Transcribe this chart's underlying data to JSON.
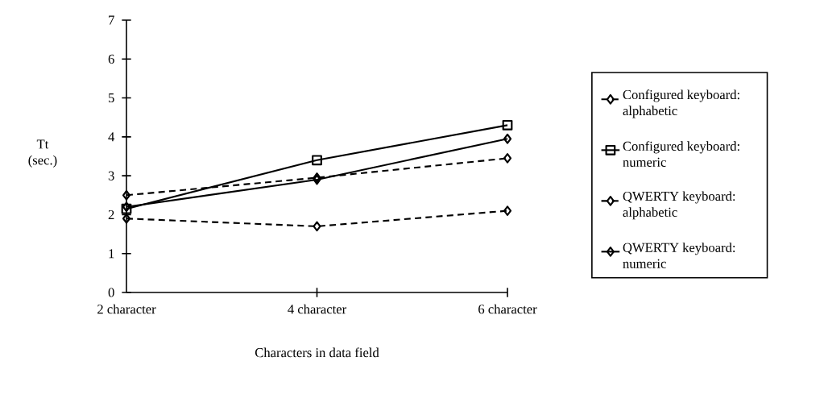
{
  "chart_data": {
    "type": "line",
    "xlabel": "Characters in data field",
    "ylabel": "Tt (sec.)",
    "categories": [
      "2 character",
      "4 character",
      "6 character"
    ],
    "ylim": [
      0,
      7
    ],
    "yticks": [
      0,
      1,
      2,
      3,
      4,
      5,
      6,
      7
    ],
    "legend": "right",
    "grid": false,
    "series": [
      {
        "name": "Configured keyboard: alphabetic",
        "color": "#000000",
        "values": [
          1.9,
          1.7,
          2.1
        ],
        "marker": "diamond",
        "line_style": "dashed"
      },
      {
        "name": "Configured keyboard: numeric",
        "color": "#000000",
        "values": [
          2.15,
          3.4,
          4.3
        ],
        "marker": "square",
        "line_style": "solid"
      },
      {
        "name": "QWERTY keyboard: alphabetic",
        "color": "#000000",
        "values": [
          2.5,
          2.95,
          3.45
        ],
        "marker": "diamond",
        "line_style": "dashed"
      },
      {
        "name": "QWERTY keyboard: numeric",
        "color": "#000000",
        "values": [
          2.2,
          2.9,
          3.95
        ],
        "marker": "diamond",
        "line_style": "solid"
      }
    ]
  }
}
